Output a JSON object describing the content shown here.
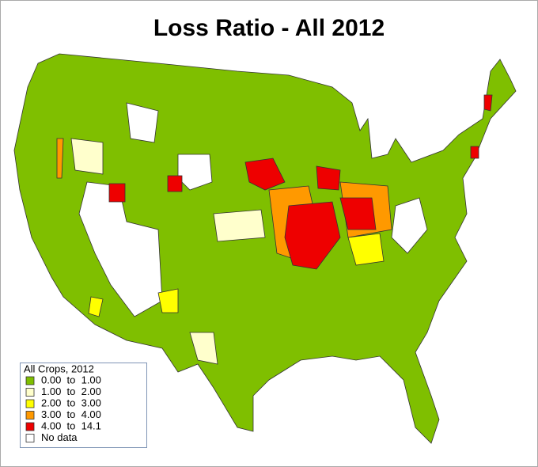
{
  "title": "Loss Ratio - All 2012",
  "legend": {
    "title": "All Crops, 2012",
    "items": [
      {
        "label": "0.00  to  1.00",
        "color": "#7fbf00"
      },
      {
        "label": "1.00  to  2.00",
        "color": "#ffffcc"
      },
      {
        "label": "2.00  to  3.00",
        "color": "#ffff00"
      },
      {
        "label": "3.00  to  4.00",
        "color": "#ff9900"
      },
      {
        "label": "4.00  to  14.1",
        "color": "#ee0000"
      },
      {
        "label": "No data",
        "color": "#ffffff"
      }
    ]
  }
}
